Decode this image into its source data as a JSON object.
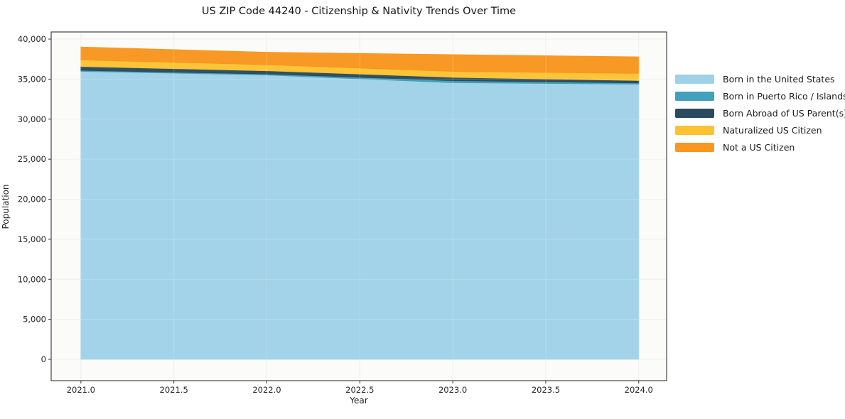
{
  "chart_data": {
    "type": "area",
    "stacked": true,
    "title": "US ZIP Code 44240 - Citizenship & Nativity Trends Over Time",
    "xlabel": "Year",
    "ylabel": "Population",
    "x": [
      2021.0,
      2022.0,
      2023.0,
      2024.0
    ],
    "series": [
      {
        "name": "Born in the United States",
        "color": "#9fd2e7",
        "values": [
          35980,
          35520,
          34560,
          34380
        ]
      },
      {
        "name": "Born in Puerto Rico / Islands",
        "color": "#41a0bb",
        "values": [
          120,
          130,
          250,
          150
        ]
      },
      {
        "name": "Born Abroad of US Parent(s)",
        "color": "#2a4a5e",
        "values": [
          480,
          400,
          420,
          300
        ]
      },
      {
        "name": "Naturalized US Citizen",
        "color": "#fcc232",
        "values": [
          830,
          750,
          740,
          890
        ]
      },
      {
        "name": "Not a US Citizen",
        "color": "#f8961f",
        "values": [
          1590,
          1550,
          2080,
          2060
        ]
      }
    ],
    "xlim": [
      2020.84,
      2024.15
    ],
    "ylim": [
      -2660,
      40890
    ],
    "xticks": [
      2021.0,
      2021.5,
      2022.0,
      2022.5,
      2023.0,
      2023.5,
      2024.0
    ],
    "yticks": [
      0,
      5000,
      10000,
      15000,
      20000,
      25000,
      30000,
      35000,
      40000
    ],
    "grid": true,
    "legend_position": "right-outside",
    "plot_bg_color": "#fbfbf9",
    "grid_color": "#ececea",
    "spine_color": "#333333",
    "tick_label_color": "#262626"
  }
}
